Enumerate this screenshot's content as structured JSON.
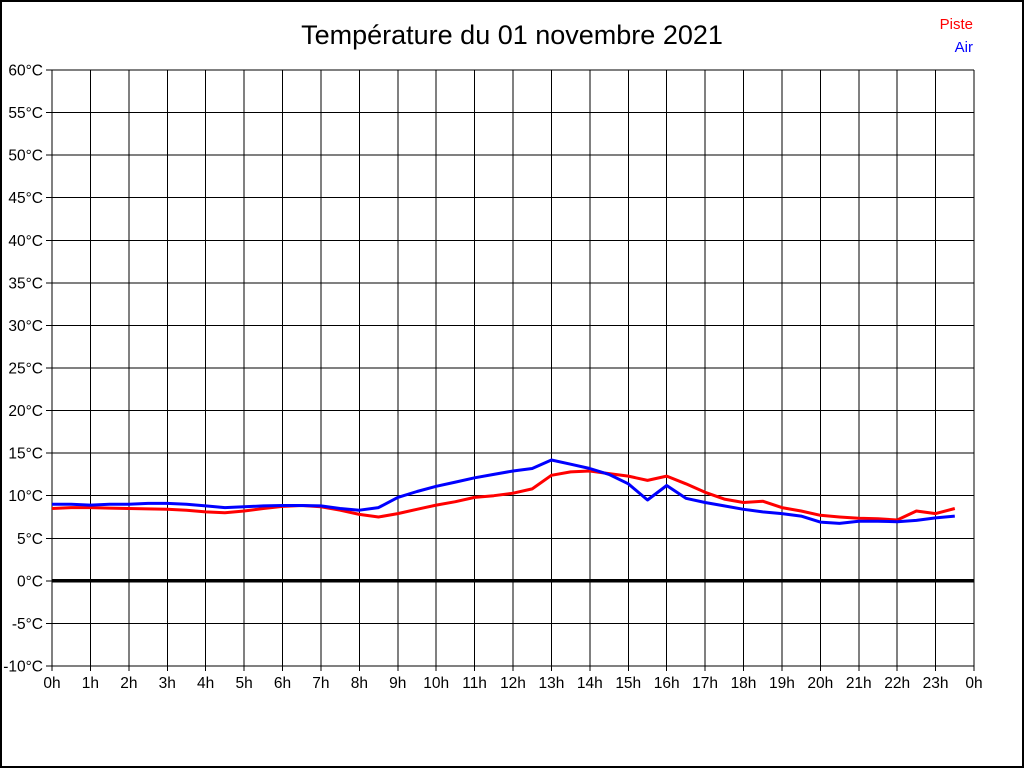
{
  "page": {
    "background": "#ffffff",
    "border_color": "#000000"
  },
  "chart_data": {
    "type": "line",
    "title": "Température du 01 novembre 2021",
    "grid": true,
    "legend": {
      "position": "top-right",
      "items": [
        {
          "label": "Piste",
          "color": "#ff0000"
        },
        {
          "label": "Air",
          "color": "#0000ff"
        }
      ]
    },
    "x_axis": {
      "unit": "hours",
      "min": 0,
      "max": 24,
      "tick_interval": 1,
      "tick_labels": [
        "0h",
        "1h",
        "2h",
        "3h",
        "4h",
        "5h",
        "6h",
        "7h",
        "8h",
        "9h",
        "10h",
        "11h",
        "12h",
        "13h",
        "14h",
        "15h",
        "16h",
        "17h",
        "18h",
        "19h",
        "20h",
        "21h",
        "22h",
        "23h",
        "0h"
      ]
    },
    "y_axis": {
      "unit": "°C",
      "min": -10,
      "max": 60,
      "tick_interval": 5,
      "tick_labels": [
        "60°C",
        "55°C",
        "50°C",
        "45°C",
        "40°C",
        "35°C",
        "30°C",
        "25°C",
        "20°C",
        "15°C",
        "10°C",
        "5°C",
        "0°C",
        "-5°C",
        "-10°C"
      ]
    },
    "zero_line": {
      "value": 0,
      "bold": true
    },
    "sample_interval_hours": 0.5,
    "series": [
      {
        "name": "Piste",
        "color": "#ff0000",
        "start_hour": 0,
        "values": [
          8.5,
          8.6,
          8.6,
          8.55,
          8.5,
          8.45,
          8.4,
          8.3,
          8.1,
          8.0,
          8.2,
          8.5,
          8.75,
          8.85,
          8.7,
          8.3,
          7.8,
          7.5,
          7.9,
          8.4,
          8.9,
          9.3,
          9.8,
          10.0,
          10.3,
          10.8,
          12.4,
          12.8,
          12.9,
          12.6,
          12.3,
          11.8,
          12.3,
          11.4,
          10.4,
          9.6,
          9.2,
          9.35,
          8.6,
          8.2,
          7.7,
          7.5,
          7.35,
          7.3,
          7.15,
          8.2,
          7.9,
          8.5
        ]
      },
      {
        "name": "Air",
        "color": "#0000ff",
        "start_hour": 0,
        "values": [
          9.0,
          9.0,
          8.9,
          9.0,
          9.0,
          9.1,
          9.1,
          9.0,
          8.8,
          8.6,
          8.7,
          8.8,
          8.85,
          8.85,
          8.8,
          8.5,
          8.3,
          8.6,
          9.8,
          10.5,
          11.1,
          11.6,
          12.1,
          12.5,
          12.9,
          13.2,
          14.2,
          13.7,
          13.2,
          12.5,
          11.4,
          9.5,
          11.2,
          9.7,
          9.2,
          8.8,
          8.4,
          8.1,
          7.9,
          7.6,
          6.9,
          6.75,
          7.0,
          7.0,
          6.95,
          7.1,
          7.4,
          7.6
        ]
      }
    ]
  }
}
